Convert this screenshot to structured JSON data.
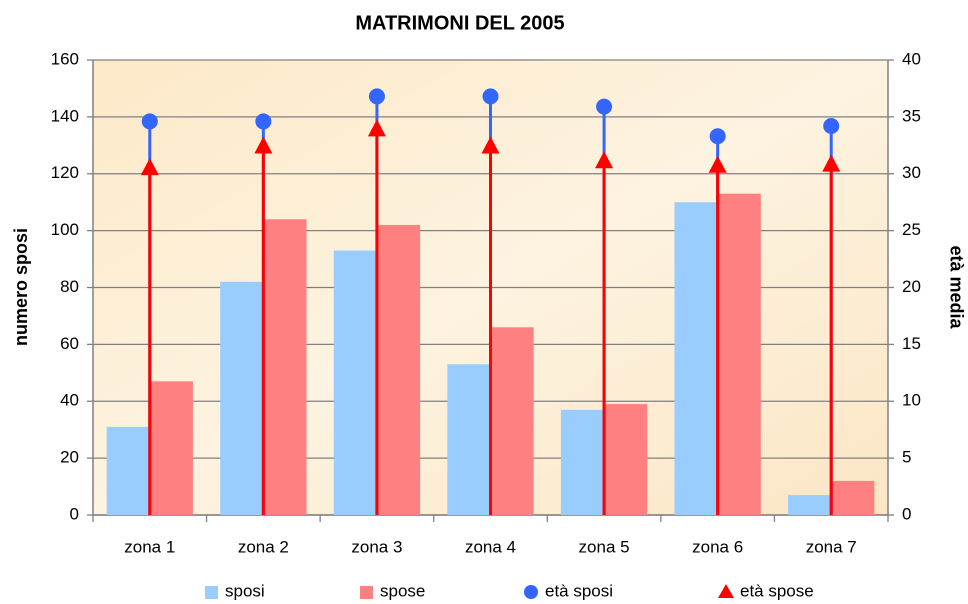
{
  "chart_data": {
    "type": "bar",
    "title": "MATRIMONI DEL 2005",
    "y_label": "numero sposi",
    "y2_label": "età media",
    "categories": [
      "zona 1",
      "zona 2",
      "zona 3",
      "zona 4",
      "zona 5",
      "zona 6",
      "zona 7"
    ],
    "series": [
      {
        "name": "sposi",
        "color": "#99ccff",
        "marker": "bar",
        "values": [
          31,
          82,
          93,
          53,
          37,
          110,
          7
        ]
      },
      {
        "name": "spose",
        "color": "#ff8080",
        "marker": "bar",
        "values": [
          47,
          104,
          102,
          66,
          39,
          113,
          12
        ]
      },
      {
        "name": "età sposi",
        "color": "#3366ff",
        "marker": "circle",
        "axis": "y2",
        "values": [
          34.6,
          34.6,
          36.8,
          36.8,
          35.9,
          33.3,
          34.2
        ]
      },
      {
        "name": "età spose",
        "color": "#ff0000",
        "marker": "triangle",
        "axis": "y2",
        "values": [
          30.5,
          32.4,
          33.9,
          32.4,
          31.1,
          30.7,
          30.8
        ]
      }
    ],
    "ylim": [
      0,
      160
    ],
    "yticks": [
      0,
      20,
      40,
      60,
      80,
      100,
      120,
      140,
      160
    ],
    "y2lim": [
      0,
      40
    ],
    "y2ticks": [
      0,
      5,
      10,
      15,
      20,
      25,
      30,
      35,
      40
    ],
    "grid": true,
    "legend": "bottom"
  }
}
